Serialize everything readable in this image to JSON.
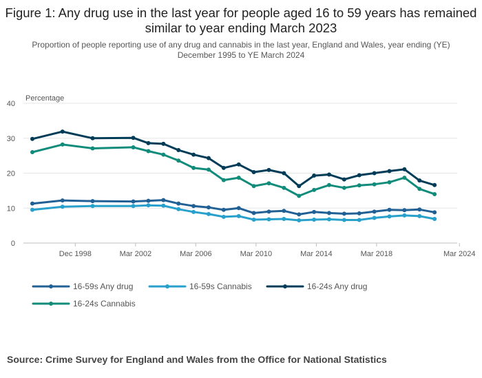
{
  "title": "Figure 1: Any drug use in the last year for people aged 16 to 59 years has remained similar to year ending March 2023",
  "subtitle": "Proportion of people reporting use of any drug and cannabis in the last year, England and Wales, year ending (YE) December 1995 to YE March 2024",
  "source": "Source: Crime Survey for England and Wales from the Office for National Statistics",
  "chart_data": {
    "type": "line",
    "title": "Figure 1: Any drug use in the last year for people aged 16 to 59 years has remained similar to year ending March 2023",
    "ylabel": "Percentage",
    "xlabel": "",
    "ylim": [
      0,
      40
    ],
    "yticks": [
      0,
      10,
      20,
      30,
      40
    ],
    "xlim": [
      1995.5,
      2024.5
    ],
    "xticks": [
      {
        "label": "Dec 1998",
        "x": 1998.75
      },
      {
        "label": "Mar 2002",
        "x": 2002.75
      },
      {
        "label": "Mar 2006",
        "x": 2006.75
      },
      {
        "label": "Mar 2010",
        "x": 2010.75
      },
      {
        "label": "Mar 2014",
        "x": 2014.75
      },
      {
        "label": "Mar 2018",
        "x": 2018.75
      },
      {
        "label": "Mar 2024",
        "x": 2024.25
      }
    ],
    "x": [
      1995.9,
      1997.9,
      1999.9,
      2002.6,
      2003.6,
      2004.6,
      2005.6,
      2006.6,
      2007.6,
      2008.6,
      2009.6,
      2010.6,
      2011.6,
      2012.6,
      2013.6,
      2014.6,
      2015.6,
      2016.6,
      2017.6,
      2018.6,
      2019.6,
      2020.6,
      2021.6,
      2022.6,
      2023.6
    ],
    "series": [
      {
        "name": "16-59s Any drug",
        "color": "#206095",
        "values": [
          11.3,
          12.2,
          12.0,
          11.9,
          12.1,
          12.3,
          11.3,
          10.6,
          10.2,
          9.5,
          10.0,
          8.6,
          9.0,
          9.2,
          8.2,
          8.9,
          8.6,
          8.4,
          8.5,
          9.0,
          9.5,
          9.4,
          9.6,
          8.8,
          null
        ]
      },
      {
        "name": "16-59s Cannabis",
        "color": "#27a0cc",
        "values": [
          9.5,
          10.4,
          10.6,
          10.6,
          10.8,
          10.7,
          9.7,
          8.9,
          8.3,
          7.5,
          7.7,
          6.7,
          6.8,
          6.9,
          6.5,
          6.7,
          6.8,
          6.6,
          6.6,
          7.2,
          7.6,
          7.9,
          7.7,
          6.9,
          null
        ]
      },
      {
        "name": "16-24s Any drug",
        "color": "#003c57",
        "values": [
          29.8,
          31.9,
          30.0,
          30.1,
          28.6,
          28.4,
          26.6,
          25.3,
          24.3,
          21.5,
          22.5,
          20.3,
          20.9,
          20.0,
          16.3,
          19.3,
          19.6,
          18.2,
          19.4,
          20.0,
          20.6,
          21.1,
          17.9,
          16.6,
          null
        ]
      },
      {
        "name": "16-24s Cannabis",
        "color": "#118c7b",
        "values": [
          26.0,
          28.2,
          27.1,
          27.4,
          26.3,
          25.3,
          23.6,
          21.5,
          21.0,
          18.0,
          18.7,
          16.3,
          17.1,
          15.8,
          13.5,
          15.2,
          16.6,
          15.8,
          16.5,
          16.8,
          17.4,
          18.7,
          15.5,
          14.0,
          null
        ]
      }
    ]
  }
}
